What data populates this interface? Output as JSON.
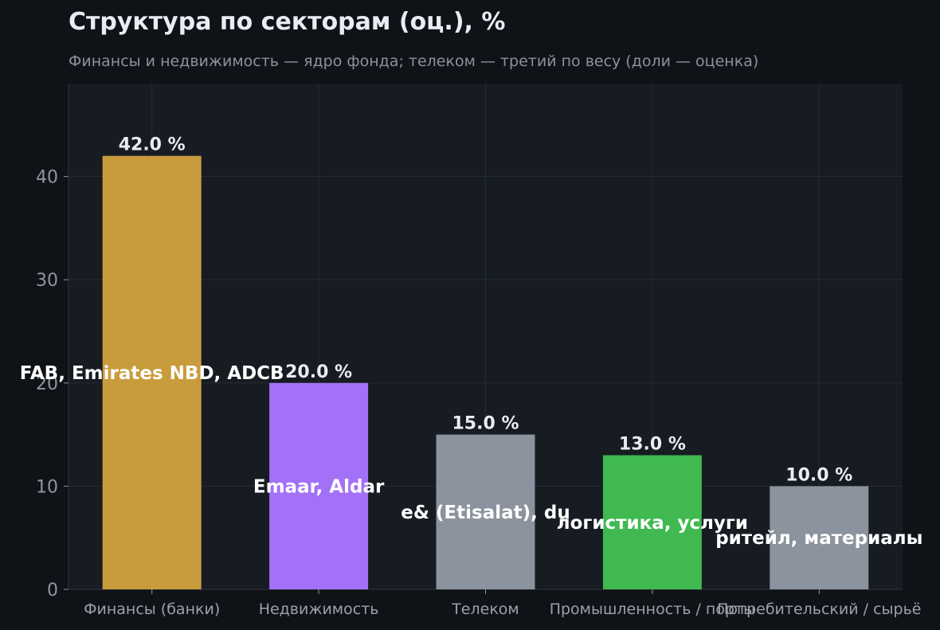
{
  "chart_data": {
    "type": "bar",
    "title": "Структура по секторам (оц.), %",
    "subtitle": "Финансы и недвижимость — ядро фонда; телеком — третий по весу (доли — оценка)",
    "categories": [
      "Финансы (банки)",
      "Недвижимость",
      "Телеком",
      "Промышленность / порты",
      "Потребительский / сырьё"
    ],
    "values": [
      42.0,
      20.0,
      15.0,
      13.0,
      10.0
    ],
    "value_labels": [
      "42.0 %",
      "20.0 %",
      "15.0 %",
      "13.0 %",
      "10.0 %"
    ],
    "inner_labels": [
      "FAB, Emirates NBD, ADCB",
      "Emaar, Aldar",
      "e& (Etisalat), du",
      "логистика, услуги",
      "ритейл, материалы"
    ],
    "colors": [
      "#c89c3c",
      "#a371f7",
      "#8b939e",
      "#3fb950",
      "#8b939e"
    ],
    "yticks": [
      0,
      10,
      20,
      30,
      40
    ],
    "ylim": [
      0,
      49
    ],
    "grid": true
  }
}
